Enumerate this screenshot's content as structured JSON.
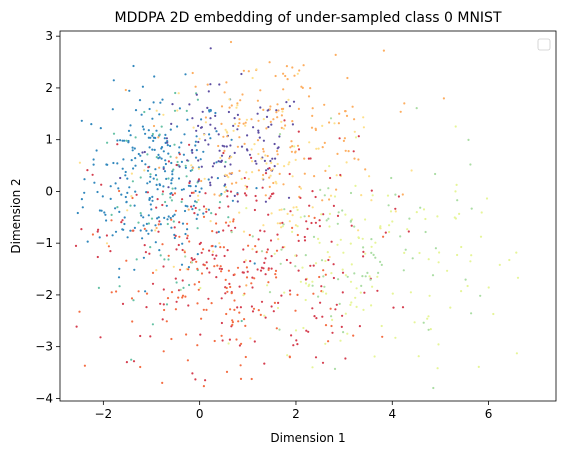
{
  "chart_data": {
    "type": "scatter",
    "title": "MDDPA 2D embedding of under-sampled class 0 MNIST",
    "xlabel": "Dimension 1",
    "ylabel": "Dimension 2",
    "xlim": [
      -2.9,
      7.4
    ],
    "ylim": [
      -4.05,
      3.1
    ],
    "xticks": [
      -2,
      0,
      2,
      4,
      6
    ],
    "yticks": [
      -4,
      -3,
      -2,
      -1,
      0,
      1,
      2,
      3
    ],
    "xtick_labels": [
      "−2",
      "0",
      "2",
      "4",
      "6"
    ],
    "ytick_labels": [
      "−4",
      "−3",
      "−2",
      "−1",
      "0",
      "1",
      "2",
      "3"
    ],
    "grid": false,
    "legend": {
      "placement": "top-right",
      "entries": []
    },
    "palette": [
      "#d53e4f",
      "#f46d43",
      "#fdae61",
      "#fee08b",
      "#e6f598",
      "#abdda4",
      "#66c2a5",
      "#3288bd",
      "#5e4fa2"
    ],
    "clusters": [
      {
        "color": "#3288bd",
        "center": [
          -0.9,
          0.3
        ],
        "spread": [
          0.75,
          0.85
        ],
        "count": 260
      },
      {
        "color": "#66c2a5",
        "center": [
          -0.7,
          -0.2
        ],
        "spread": [
          0.7,
          0.9
        ],
        "count": 70
      },
      {
        "color": "#5e4fa2",
        "center": [
          0.6,
          0.8
        ],
        "spread": [
          0.85,
          0.6
        ],
        "count": 110
      },
      {
        "color": "#fdae61",
        "center": [
          1.6,
          1.2
        ],
        "spread": [
          1.1,
          0.75
        ],
        "count": 150
      },
      {
        "color": "#fee08b",
        "center": [
          1.3,
          0.3
        ],
        "spread": [
          1.3,
          1.1
        ],
        "count": 120
      },
      {
        "color": "#d53e4f",
        "center": [
          0.8,
          -1.2
        ],
        "spread": [
          1.5,
          1.1
        ],
        "count": 250
      },
      {
        "color": "#f46d43",
        "center": [
          0.4,
          -1.9
        ],
        "spread": [
          1.3,
          0.85
        ],
        "count": 150
      },
      {
        "color": "#e6f598",
        "center": [
          3.6,
          -1.6
        ],
        "spread": [
          1.5,
          1.1
        ],
        "count": 140
      },
      {
        "color": "#abdda4",
        "center": [
          3.3,
          -1.3
        ],
        "spread": [
          1.4,
          1.0
        ],
        "count": 80
      }
    ],
    "marker": "point"
  }
}
